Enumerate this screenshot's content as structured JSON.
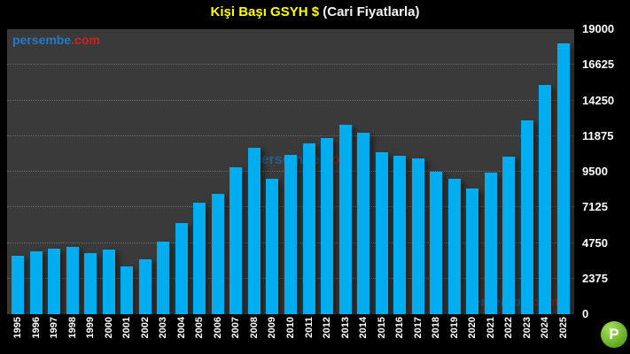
{
  "title": {
    "highlight": "Kişi Başı GSYH $",
    "rest": " (Cari Fiyatlarla)"
  },
  "watermark": {
    "text_blue": "persembe",
    "text_red": ".com"
  },
  "logo": {
    "letter": "P"
  },
  "colors": {
    "bar": "#00AEEF",
    "plot_background": "#3A3A3A",
    "page_background": "#000000",
    "title_highlight": "#FFFF00",
    "title_rest": "#FFFFFF",
    "watermark_blue": "#1E7CC8",
    "watermark_red": "#CC2222",
    "logo_green": "#6DB32C",
    "gridline": "#9A9A9A",
    "axis_text": "#FFFFFF"
  },
  "chart_data": {
    "type": "bar",
    "title": "Kişi Başı GSYH $ (Cari Fiyatlarla)",
    "categories": [
      "1995",
      "1996",
      "1997",
      "1998",
      "1999",
      "2000",
      "2001",
      "2002",
      "2003",
      "2004",
      "2005",
      "2006",
      "2007",
      "2008",
      "2009",
      "2010",
      "2011",
      "2012",
      "2013",
      "2014",
      "2015",
      "2016",
      "2017",
      "2018",
      "2019",
      "2020",
      "2021",
      "2022",
      "2023",
      "2024",
      "2025"
    ],
    "values": [
      3900,
      4200,
      4350,
      4500,
      4050,
      4300,
      3200,
      3650,
      4850,
      6050,
      7450,
      8050,
      9800,
      11100,
      9050,
      10650,
      11400,
      11750,
      12600,
      12100,
      10800,
      10550,
      10400,
      9500,
      9000,
      8400,
      9450,
      10500,
      12950,
      15300,
      18050
    ],
    "xlabel": "",
    "ylabel": "",
    "ylim": [
      0,
      19000
    ],
    "yticks": [
      19000,
      16625,
      14250,
      11875,
      9500,
      7125,
      4750,
      2375,
      0
    ],
    "grid": "horizontal-dotted",
    "legend": "none",
    "y_axis_side": "right",
    "x_label_rotation": 90
  }
}
